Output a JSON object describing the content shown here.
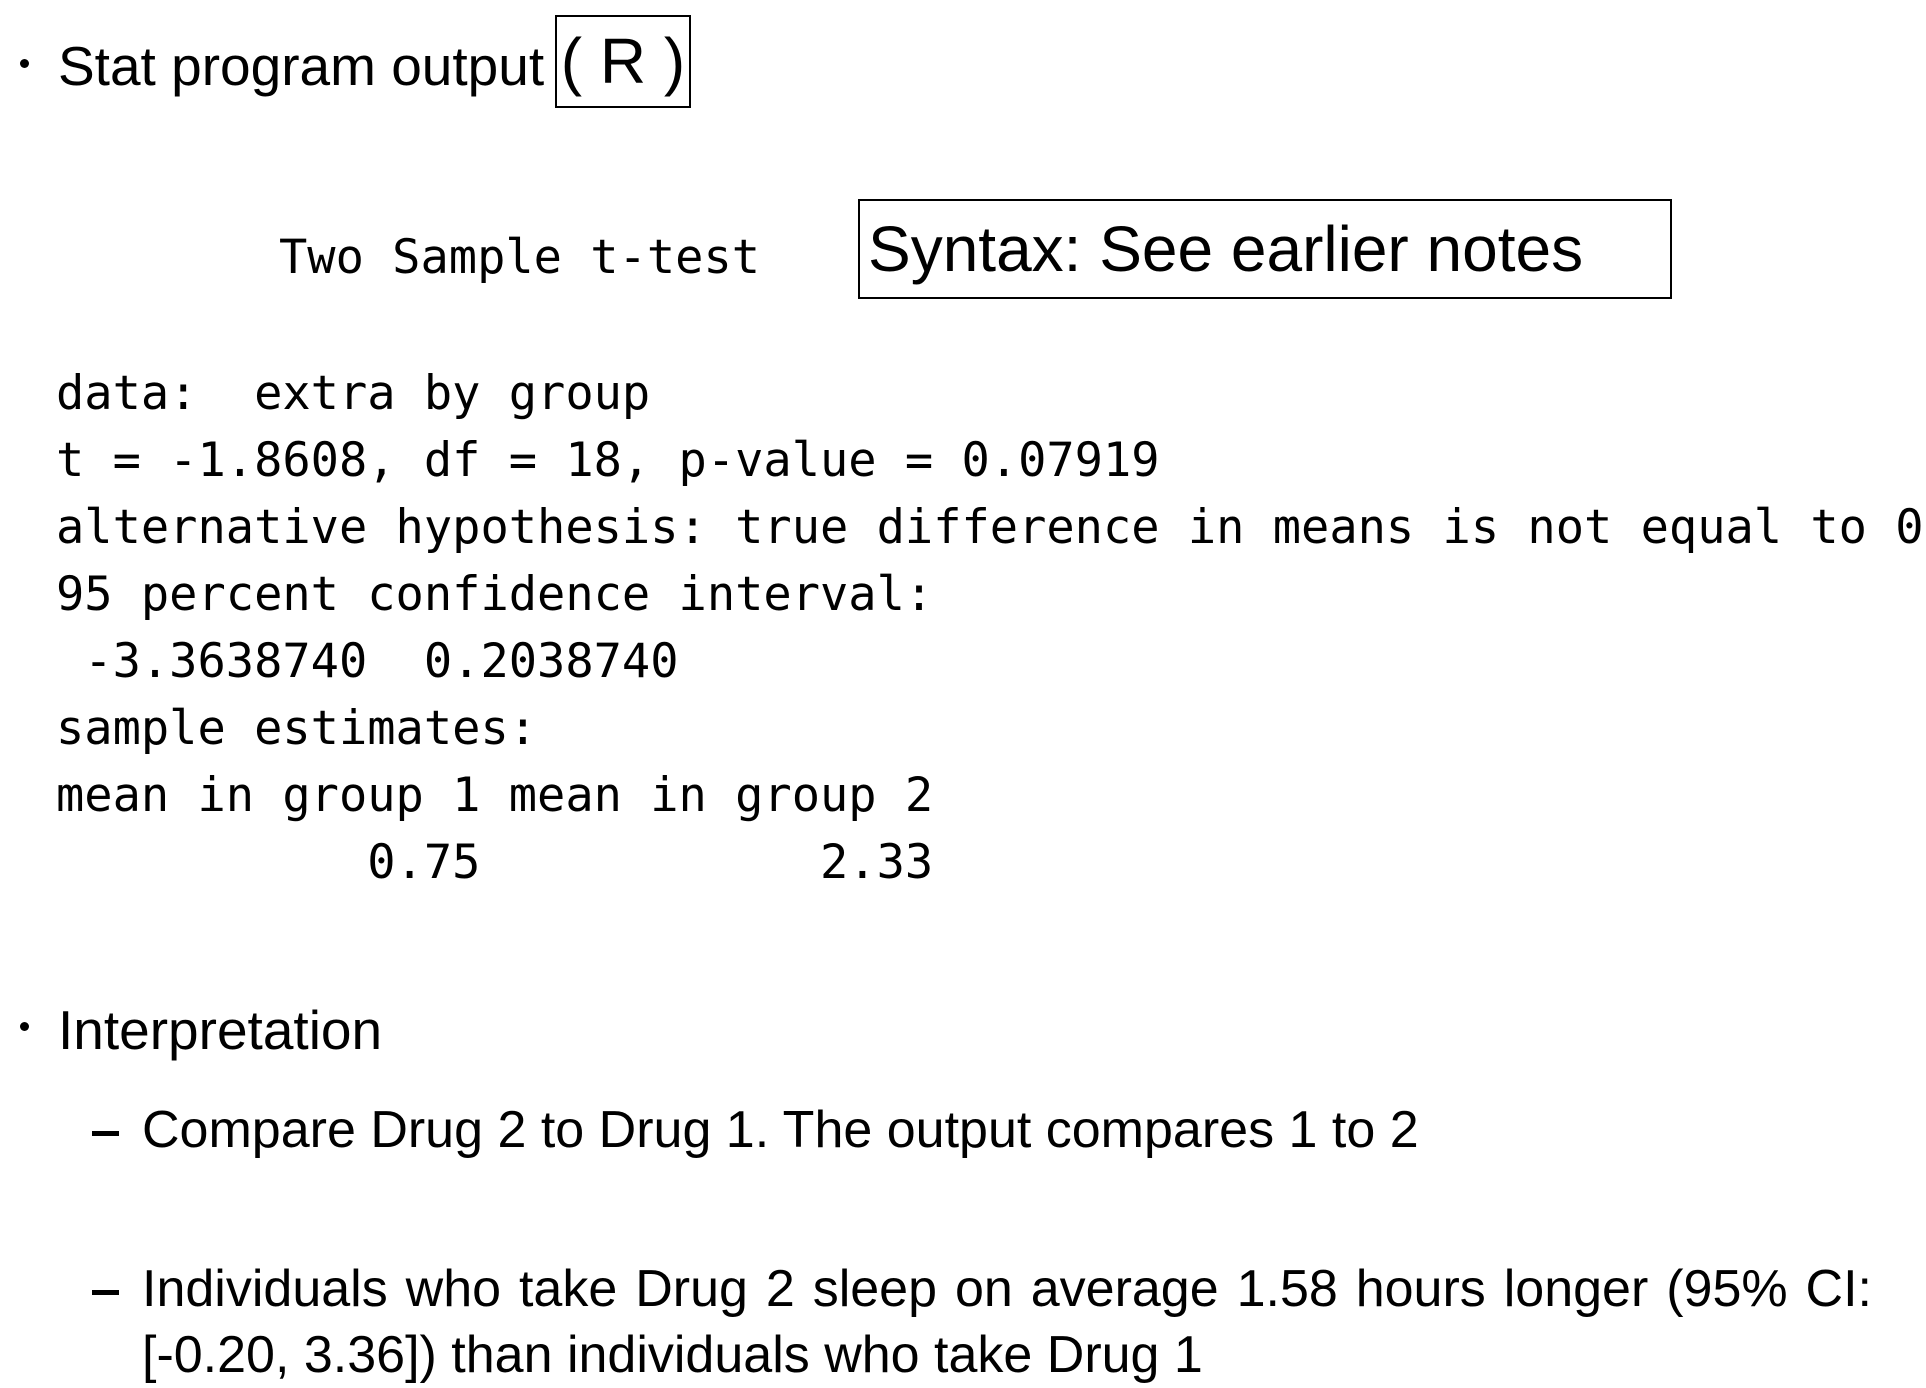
{
  "bullet1": {
    "text": "Stat program output",
    "boxed_label": "( R )"
  },
  "output": {
    "title": "Two Sample t-test",
    "syntax_note": "Syntax: See earlier notes",
    "lines": [
      "data:  extra by group",
      "t = -1.8608, df = 18, p-value = 0.07919",
      "alternative hypothesis: true difference in means is not equal to 0",
      "95 percent confidence interval:",
      " -3.3638740  0.2038740",
      "sample estimates:",
      "mean in group 1 mean in group 2",
      "           0.75            2.33"
    ]
  },
  "bullet2": {
    "text": "Interpretation",
    "subitems": [
      "Compare Drug 2 to Drug 1. The output compares 1 to 2",
      "Individuals who take Drug 2 sleep on average 1.58 hours longer (95% CI: [-0.20, 3.36]) than individuals who take Drug 1"
    ]
  }
}
